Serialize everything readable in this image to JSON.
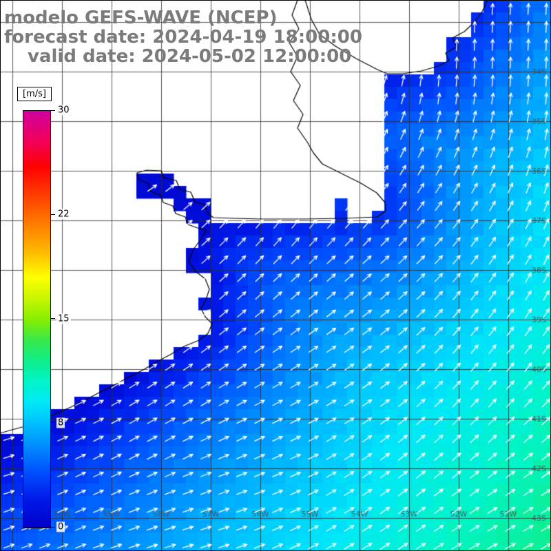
{
  "header": {
    "model_line": "modelo GEFS-WAVE (NCEP)",
    "forecast_line": "forecast date: 2024-04-19 18:00:00",
    "valid_line": "valid date: 2024-05-02 12:00:00",
    "text_color": "#7b7b7b"
  },
  "colorbar": {
    "unit": "[m/s]",
    "min": 0,
    "max": 30,
    "ticks": [
      {
        "label": "30",
        "value": 30
      },
      {
        "label": "22",
        "value": 22.5
      },
      {
        "label": "15",
        "value": 15
      },
      {
        "label": "8",
        "value": 7.5
      },
      {
        "label": "0",
        "value": 0
      }
    ],
    "stops": [
      {
        "v": 0,
        "c": "#0000c8"
      },
      {
        "v": 2,
        "c": "#0018e8"
      },
      {
        "v": 4,
        "c": "#0050ff"
      },
      {
        "v": 6,
        "c": "#0090ff"
      },
      {
        "v": 7.5,
        "c": "#00c0ff"
      },
      {
        "v": 9,
        "c": "#00e8f8"
      },
      {
        "v": 10.5,
        "c": "#00f4c8"
      },
      {
        "v": 12,
        "c": "#10ee8a"
      },
      {
        "v": 13.5,
        "c": "#38e84a"
      },
      {
        "v": 15,
        "c": "#88ee00"
      },
      {
        "v": 16.5,
        "c": "#c8f600"
      },
      {
        "v": 18,
        "c": "#ffff00"
      },
      {
        "v": 20,
        "c": "#ffb400"
      },
      {
        "v": 22,
        "c": "#ff7800"
      },
      {
        "v": 24,
        "c": "#ff3c00"
      },
      {
        "v": 26,
        "c": "#ff0000"
      },
      {
        "v": 27.5,
        "c": "#f4004c"
      },
      {
        "v": 29,
        "c": "#e00080"
      },
      {
        "v": 30,
        "c": "#d000a0"
      }
    ]
  },
  "map": {
    "lat_labels": [
      "34S",
      "35S",
      "36S",
      "37S",
      "38S",
      "39S",
      "40S",
      "41S",
      "42S",
      "43S"
    ],
    "lon_labels": [
      "60W",
      "59W",
      "58W",
      "57W",
      "56W",
      "55W",
      "54W",
      "53W",
      "52W",
      "51W"
    ],
    "arrow_color": "#ffffff",
    "grid_color": "rgba(45,45,45,0.8)",
    "label_color": "rgba(75,75,75,0.85)",
    "coast_color": "#000000",
    "land_color": "#ffffff"
  }
}
